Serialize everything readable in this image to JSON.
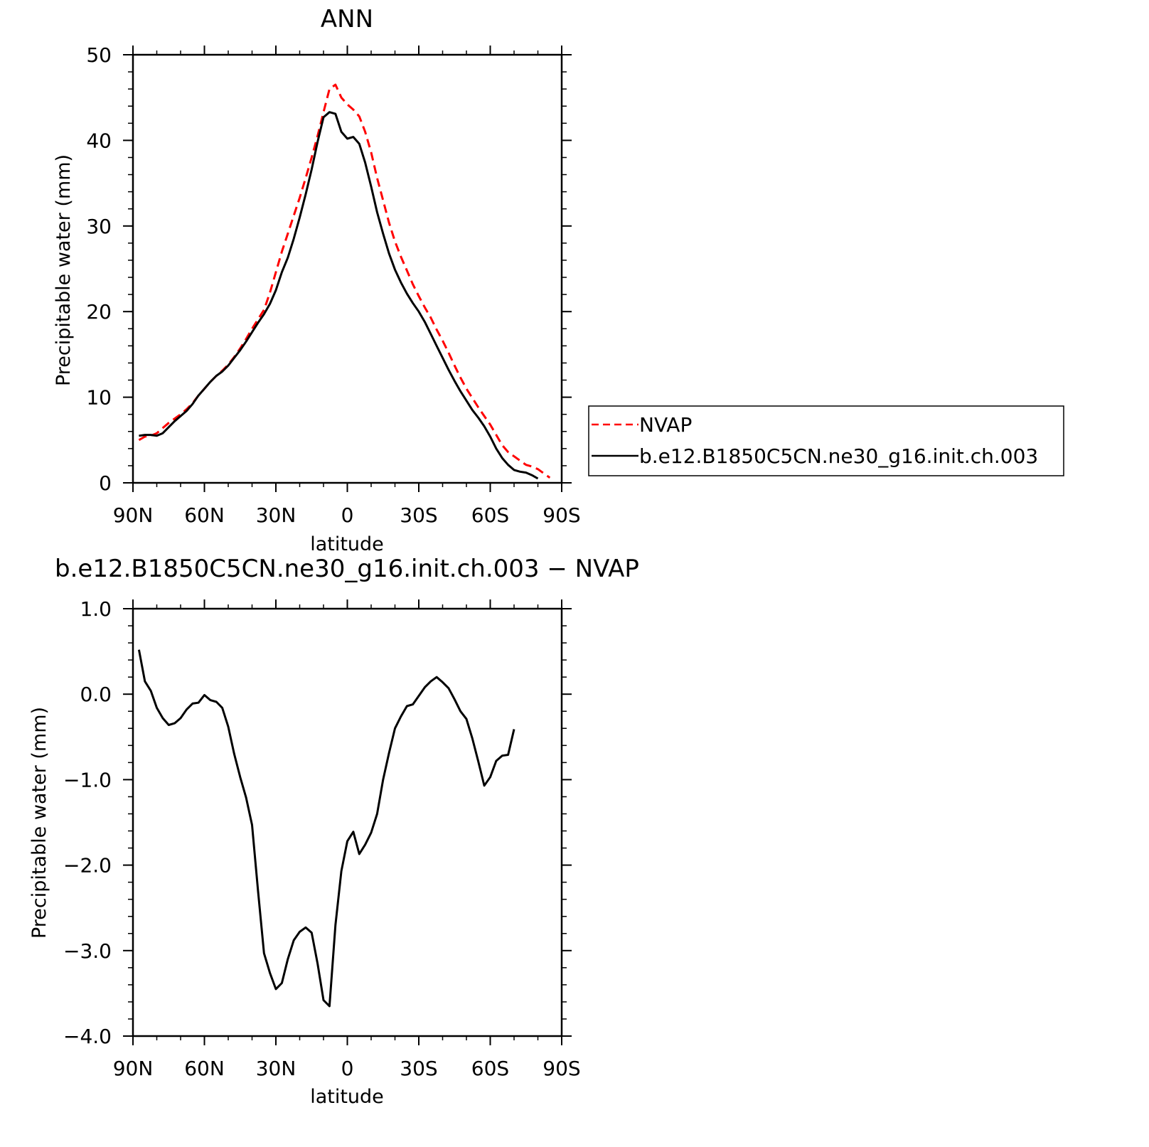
{
  "chart_data": [
    {
      "type": "line",
      "title": "ANN",
      "xlabel": "latitude",
      "ylabel": "Precipitable water (mm)",
      "xlim": [
        90,
        -90
      ],
      "ylim": [
        0,
        50
      ],
      "x_tick_labels": [
        "90N",
        "60N",
        "30N",
        "0",
        "30S",
        "60S",
        "90S"
      ],
      "y_tick_labels": [
        "0",
        "10",
        "20",
        "30",
        "40",
        "50"
      ],
      "legend": {
        "position": "right",
        "entries": [
          "NVAP",
          "b.e12.B1850C5CN.ne30_g16.init.ch.003"
        ]
      },
      "series": [
        {
          "name": "NVAP",
          "color": "#ff0000",
          "dash": "dashed",
          "points": [
            [
              87.5,
              5.0
            ],
            [
              85,
              5.4
            ],
            [
              82.5,
              5.5
            ],
            [
              80,
              5.8
            ],
            [
              77.5,
              6.4
            ],
            [
              75,
              7.0
            ],
            [
              72.5,
              7.5
            ],
            [
              70,
              8.0
            ],
            [
              67.5,
              8.6
            ],
            [
              65,
              9.3
            ],
            [
              62.5,
              10.2
            ],
            [
              60,
              11.0
            ],
            [
              57.5,
              11.8
            ],
            [
              55,
              12.5
            ],
            [
              52.5,
              13.1
            ],
            [
              50,
              13.8
            ],
            [
              47.5,
              14.7
            ],
            [
              45,
              15.7
            ],
            [
              42.5,
              16.8
            ],
            [
              40,
              18.0
            ],
            [
              37.5,
              19.1
            ],
            [
              35,
              20.2
            ],
            [
              32.5,
              22.2
            ],
            [
              30,
              24.6
            ],
            [
              27.5,
              27.0
            ],
            [
              25,
              29.1
            ],
            [
              22.5,
              31.2
            ],
            [
              20,
              33.3
            ],
            [
              17.5,
              35.6
            ],
            [
              15,
              38.0
            ],
            [
              12.5,
              40.5
            ],
            [
              10,
              43.3
            ],
            [
              7.5,
              46.0
            ],
            [
              5,
              46.5
            ],
            [
              2.5,
              45.0
            ],
            [
              0,
              44.2
            ],
            [
              -2.5,
              43.6
            ],
            [
              -5,
              42.8
            ],
            [
              -7.5,
              41.0
            ],
            [
              -10,
              38.6
            ],
            [
              -12.5,
              35.6
            ],
            [
              -15,
              33.0
            ],
            [
              -17.5,
              30.4
            ],
            [
              -20,
              28.2
            ],
            [
              -22.5,
              26.4
            ],
            [
              -25,
              24.8
            ],
            [
              -27.5,
              23.2
            ],
            [
              -30,
              21.8
            ],
            [
              -32.5,
              20.5
            ],
            [
              -35,
              19.3
            ],
            [
              -37.5,
              17.9
            ],
            [
              -40,
              16.6
            ],
            [
              -42.5,
              15.2
            ],
            [
              -45,
              13.7
            ],
            [
              -47.5,
              12.3
            ],
            [
              -50,
              11.0
            ],
            [
              -52.5,
              9.9
            ],
            [
              -55,
              8.8
            ],
            [
              -57.5,
              7.8
            ],
            [
              -60,
              6.8
            ],
            [
              -62.5,
              5.6
            ],
            [
              -65,
              4.4
            ],
            [
              -67.5,
              3.6
            ],
            [
              -70,
              3.1
            ],
            [
              -72.5,
              2.6
            ],
            [
              -75,
              2.1
            ],
            [
              -77.5,
              1.9
            ],
            [
              -80,
              1.6
            ],
            [
              -82.5,
              1.1
            ],
            [
              -85,
              0.6
            ]
          ]
        },
        {
          "name": "b.e12.B1850C5CN.ne30_g16.init.ch.003",
          "color": "#000000",
          "dash": "solid",
          "points": [
            [
              87.5,
              5.5
            ],
            [
              85,
              5.6
            ],
            [
              82.5,
              5.6
            ],
            [
              80,
              5.5
            ],
            [
              77.5,
              5.8
            ],
            [
              75,
              6.5
            ],
            [
              72.5,
              7.2
            ],
            [
              70,
              7.8
            ],
            [
              67.5,
              8.4
            ],
            [
              65,
              9.2
            ],
            [
              62.5,
              10.2
            ],
            [
              60,
              11.0
            ],
            [
              57.5,
              11.8
            ],
            [
              55,
              12.5
            ],
            [
              52.5,
              13.0
            ],
            [
              50,
              13.7
            ],
            [
              47.5,
              14.6
            ],
            [
              45,
              15.5
            ],
            [
              42.5,
              16.5
            ],
            [
              40,
              17.6
            ],
            [
              37.5,
              18.7
            ],
            [
              35,
              19.7
            ],
            [
              32.5,
              20.9
            ],
            [
              30,
              22.5
            ],
            [
              27.5,
              24.6
            ],
            [
              25,
              26.3
            ],
            [
              22.5,
              28.5
            ],
            [
              20,
              31.0
            ],
            [
              17.5,
              33.7
            ],
            [
              15,
              36.6
            ],
            [
              12.5,
              39.8
            ],
            [
              10,
              42.7
            ],
            [
              7.5,
              43.3
            ],
            [
              5,
              43.1
            ],
            [
              2.5,
              41.0
            ],
            [
              0,
              40.2
            ],
            [
              -2.5,
              40.4
            ],
            [
              -5,
              39.6
            ],
            [
              -7.5,
              37.4
            ],
            [
              -10,
              34.6
            ],
            [
              -12.5,
              31.6
            ],
            [
              -15,
              29.1
            ],
            [
              -17.5,
              26.8
            ],
            [
              -20,
              24.9
            ],
            [
              -22.5,
              23.4
            ],
            [
              -25,
              22.1
            ],
            [
              -27.5,
              21.0
            ],
            [
              -30,
              20.0
            ],
            [
              -32.5,
              18.8
            ],
            [
              -35,
              17.4
            ],
            [
              -37.5,
              16.0
            ],
            [
              -40,
              14.6
            ],
            [
              -42.5,
              13.2
            ],
            [
              -45,
              11.9
            ],
            [
              -47.5,
              10.7
            ],
            [
              -50,
              9.6
            ],
            [
              -52.5,
              8.5
            ],
            [
              -55,
              7.6
            ],
            [
              -57.5,
              6.6
            ],
            [
              -60,
              5.4
            ],
            [
              -62.5,
              4.0
            ],
            [
              -65,
              2.9
            ],
            [
              -67.5,
              2.1
            ],
            [
              -70,
              1.5
            ],
            [
              -72.5,
              1.3
            ],
            [
              -75,
              1.2
            ],
            [
              -77.5,
              0.9
            ],
            [
              -80,
              0.5
            ]
          ]
        }
      ]
    },
    {
      "type": "line",
      "title": "b.e12.B1850C5CN.ne30_g16.init.ch.003 − NVAP",
      "xlabel": "latitude",
      "ylabel": "Precipitable water (mm)",
      "xlim": [
        90,
        -90
      ],
      "ylim": [
        -4.0,
        1.0
      ],
      "x_tick_labels": [
        "90N",
        "60N",
        "30N",
        "0",
        "30S",
        "60S",
        "90S"
      ],
      "y_tick_labels": [
        "1.0",
        "0.0",
        "−1.0",
        "−2.0",
        "−3.0",
        "−4.0"
      ],
      "series": [
        {
          "color": "#000000",
          "dash": "solid",
          "points": [
            [
              87.5,
              0.52
            ],
            [
              85,
              0.15
            ],
            [
              82.5,
              0.04
            ],
            [
              80,
              -0.16
            ],
            [
              77.5,
              -0.28
            ],
            [
              75,
              -0.36
            ],
            [
              72.5,
              -0.34
            ],
            [
              70,
              -0.28
            ],
            [
              67.5,
              -0.18
            ],
            [
              65,
              -0.11
            ],
            [
              62.5,
              -0.1
            ],
            [
              60,
              -0.01
            ],
            [
              57.5,
              -0.07
            ],
            [
              55,
              -0.09
            ],
            [
              52.5,
              -0.16
            ],
            [
              50,
              -0.38
            ],
            [
              47.5,
              -0.7
            ],
            [
              45,
              -0.97
            ],
            [
              42.5,
              -1.21
            ],
            [
              40,
              -1.53
            ],
            [
              37.5,
              -2.3
            ],
            [
              35,
              -3.03
            ],
            [
              32.5,
              -3.26
            ],
            [
              30,
              -3.45
            ],
            [
              27.5,
              -3.38
            ],
            [
              25,
              -3.1
            ],
            [
              22.5,
              -2.88
            ],
            [
              20,
              -2.78
            ],
            [
              17.5,
              -2.73
            ],
            [
              15,
              -2.79
            ],
            [
              12.5,
              -3.15
            ],
            [
              10,
              -3.58
            ],
            [
              7.5,
              -3.65
            ],
            [
              5,
              -2.7
            ],
            [
              2.5,
              -2.07
            ],
            [
              0,
              -1.72
            ],
            [
              -2.5,
              -1.61
            ],
            [
              -5,
              -1.87
            ],
            [
              -7.5,
              -1.76
            ],
            [
              -10,
              -1.62
            ],
            [
              -12.5,
              -1.4
            ],
            [
              -15,
              -1.0
            ],
            [
              -17.5,
              -0.69
            ],
            [
              -20,
              -0.4
            ],
            [
              -22.5,
              -0.26
            ],
            [
              -25,
              -0.14
            ],
            [
              -27.5,
              -0.12
            ],
            [
              -30,
              -0.02
            ],
            [
              -32.5,
              0.08
            ],
            [
              -35,
              0.15
            ],
            [
              -37.5,
              0.2
            ],
            [
              -40,
              0.14
            ],
            [
              -42.5,
              0.07
            ],
            [
              -45,
              -0.06
            ],
            [
              -47.5,
              -0.2
            ],
            [
              -50,
              -0.29
            ],
            [
              -52.5,
              -0.52
            ],
            [
              -55,
              -0.79
            ],
            [
              -57.5,
              -1.07
            ],
            [
              -60,
              -0.97
            ],
            [
              -62.5,
              -0.78
            ],
            [
              -65,
              -0.72
            ],
            [
              -67.5,
              -0.71
            ],
            [
              -70,
              -0.41
            ]
          ]
        }
      ]
    }
  ]
}
